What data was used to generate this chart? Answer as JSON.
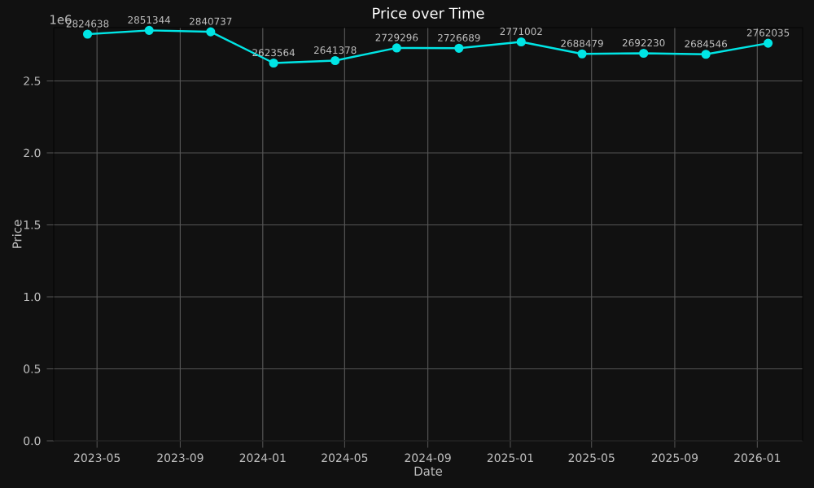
{
  "chart_data": {
    "type": "line",
    "title": "Price over Time",
    "xlabel": "Date",
    "ylabel": "Price",
    "x": [
      "2023-04-17",
      "2023-07-17",
      "2023-10-16",
      "2024-01-17",
      "2024-04-17",
      "2024-07-17",
      "2024-10-17",
      "2025-01-17",
      "2025-04-17",
      "2025-07-17",
      "2025-10-17",
      "2026-01-17"
    ],
    "series": [
      {
        "color": "#00e5e5",
        "values": [
          2.825,
          2.851,
          2.841,
          2.624,
          2.641,
          2.729,
          2.727,
          2.771,
          2.688,
          2.692,
          2.685,
          2.762
        ]
      }
    ],
    "xlim": [
      "2023-02-26",
      "2026-03-09"
    ],
    "xticks": [
      "2023-05",
      "2023-09",
      "2024-01",
      "2024-05",
      "2024-09",
      "2025-01",
      "2025-05",
      "2025-09",
      "2026-01"
    ],
    "ylim": [
      0,
      2.87
    ],
    "yticks": [
      {
        "value": 0,
        "label": "0.0"
      },
      0.5,
      {
        "value": 1,
        "label": "1.0"
      },
      1.5,
      {
        "value": 2,
        "label": "2.0"
      },
      2.5
    ],
    "annotations": [
      "1e6",
      {
        "text": "2824638",
        "x": "2023-04-17",
        "y": 2.825
      },
      {
        "text": "2851344",
        "x": "2023-07-17",
        "y": 2.851
      },
      {
        "text": "2840737",
        "x": "2023-10-16",
        "y": 2.841
      },
      {
        "text": "2623564",
        "x": "2024-01-17",
        "y": 2.624
      },
      {
        "text": "2641378",
        "x": "2024-04-17",
        "y": 2.641
      },
      {
        "text": "2729296",
        "x": "2024-07-17",
        "y": 2.729
      },
      {
        "text": "2726689",
        "x": "2024-10-17",
        "y": 2.727
      },
      {
        "text": "2771002",
        "x": "2025-01-17",
        "y": 2.771
      },
      {
        "text": "2688479",
        "x": "2025-04-17",
        "y": 2.688
      },
      {
        "text": "2692230",
        "x": "2025-07-17",
        "y": 2.692
      },
      {
        "text": "2684546",
        "x": "2025-10-17",
        "y": 2.685
      },
      {
        "text": "2762035",
        "x": "2026-01-17",
        "y": 2.762
      }
    ],
    "grid": true,
    "marker": "circle",
    "line_style": "solid"
  }
}
